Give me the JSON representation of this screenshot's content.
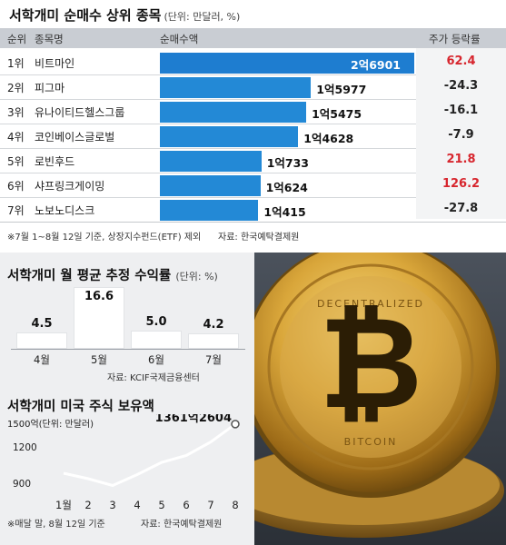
{
  "top_section": {
    "title": "서학개미 순매수 상위 종목",
    "unit": "(단위: 만달러, %)",
    "headers": {
      "rank": "순위",
      "name": "종목명",
      "net_buy": "순매수액",
      "change": "주가 등락률"
    },
    "note": "※7월 1~8월 12일 기준, 상장지수펀드(ETF) 제외",
    "source": "자료: 한국예탁결제원"
  },
  "middle_section": {
    "title": "서학개미 월 평균 추정 수익률",
    "unit": "(단위: %)",
    "source": "자료: KCIF국제금융센터"
  },
  "bottom_section": {
    "title": "서학개미 미국 주식 보유액",
    "y_max_label": "1500억(단위: 만달러)",
    "y_tick_1200": "1200",
    "y_tick_900": "900",
    "end_label": "1361억2604",
    "note": "※매달 말, 8월 12일 기준",
    "source": "자료: 한국예탁결제원"
  },
  "colors": {
    "bar_blue": "#2389d6",
    "up_red": "#d7262e",
    "down_black": "#222222",
    "panel_gray": "#eeeff1",
    "line_white": "#ffffff"
  },
  "chart_data": [
    {
      "type": "bar",
      "orientation": "horizontal",
      "title": "서학개미 순매수 상위 종목",
      "categories": [
        "비트마인",
        "피그마",
        "유나이티드헬스그룹",
        "코인베이스글로벌",
        "로빈후드",
        "샤프링크게이밍",
        "노보노디스크"
      ],
      "ranks": [
        "1위",
        "2위",
        "3위",
        "4위",
        "5위",
        "6위",
        "7위"
      ],
      "values": [
        26901,
        15977,
        15475,
        14628,
        10733,
        10624,
        10415
      ],
      "value_labels": [
        "2억6901",
        "1억5977",
        "1억5475",
        "1억4628",
        "1억733",
        "1억624",
        "1억415"
      ],
      "series": [
        {
          "name": "순매수액",
          "values": [
            26901,
            15977,
            15475,
            14628,
            10733,
            10624,
            10415
          ]
        },
        {
          "name": "주가 등락률",
          "values": [
            62.4,
            -24.3,
            -16.1,
            -7.9,
            21.8,
            126.2,
            -27.8
          ]
        }
      ],
      "change_labels": [
        "62.4",
        "-24.3",
        "-16.1",
        "-7.9",
        "21.8",
        "126.2",
        "-27.8"
      ]
    },
    {
      "type": "bar",
      "title": "서학개미 월 평균 추정 수익률",
      "categories": [
        "4월",
        "5월",
        "6월",
        "7월"
      ],
      "values": [
        4.5,
        16.6,
        5.0,
        4.2
      ],
      "value_labels": [
        "4.5",
        "16.6",
        "5.0",
        "4.2"
      ]
    },
    {
      "type": "line",
      "title": "서학개미 미국 주식 보유액",
      "x": [
        "1월",
        "2",
        "3",
        "4",
        "5",
        "6",
        "7",
        "8"
      ],
      "y": [
        1000,
        960,
        910,
        990,
        1080,
        1130,
        1230,
        1361.2604
      ],
      "ylim": [
        900,
        1500
      ],
      "yticks": [
        900,
        1200,
        1500
      ]
    }
  ]
}
